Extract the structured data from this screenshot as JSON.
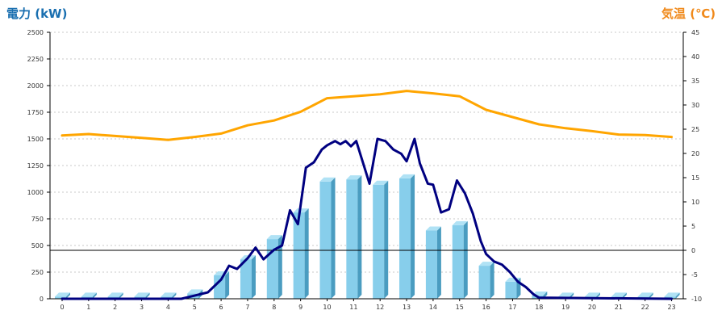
{
  "chart_data": {
    "type": "bar",
    "left_axis_title": "電力 (kW)",
    "right_axis_title": "気温 (℃)",
    "x": [
      0,
      1,
      2,
      3,
      4,
      5,
      6,
      7,
      8,
      9,
      10,
      11,
      12,
      13,
      14,
      15,
      16,
      17,
      18,
      19,
      20,
      21,
      22,
      23
    ],
    "x_tick_labels": [
      "0",
      "1",
      "2",
      "3",
      "4",
      "5",
      "6",
      "7",
      "8",
      "9",
      "10",
      "11",
      "12",
      "13",
      "14",
      "15",
      "16",
      "17",
      "18",
      "19",
      "20",
      "21",
      "22",
      "23"
    ],
    "ylim_left": [
      0,
      2500
    ],
    "y_left_ticks": [
      "0",
      "250",
      "500",
      "750",
      "1000",
      "1250",
      "1500",
      "1750",
      "2000",
      "2250",
      "2500"
    ],
    "ylim_right": [
      -10,
      45
    ],
    "y_right_ticks": [
      "-10",
      "-5",
      "0",
      "5",
      "10",
      "15",
      "20",
      "25",
      "30",
      "35",
      "40",
      "45"
    ],
    "grid": true,
    "series": [
      {
        "kind": "bar",
        "axis": "left",
        "color": "#87ceeb",
        "values": [
          20,
          20,
          20,
          20,
          20,
          50,
          220,
          370,
          560,
          810,
          1100,
          1120,
          1070,
          1130,
          640,
          690,
          310,
          160,
          30,
          20,
          20,
          20,
          20,
          20
        ]
      },
      {
        "kind": "line",
        "axis": "left",
        "color": "#000080",
        "points": [
          [
            0,
            0
          ],
          [
            4.5,
            0
          ],
          [
            5,
            30
          ],
          [
            5.5,
            60
          ],
          [
            6,
            180
          ],
          [
            6.3,
            310
          ],
          [
            6.6,
            280
          ],
          [
            7,
            380
          ],
          [
            7.3,
            480
          ],
          [
            7.6,
            370
          ],
          [
            8,
            460
          ],
          [
            8.3,
            500
          ],
          [
            8.6,
            830
          ],
          [
            8.9,
            700
          ],
          [
            9.2,
            1230
          ],
          [
            9.5,
            1280
          ],
          [
            9.8,
            1400
          ],
          [
            10,
            1440
          ],
          [
            10.3,
            1480
          ],
          [
            10.5,
            1450
          ],
          [
            10.7,
            1480
          ],
          [
            10.9,
            1430
          ],
          [
            11.1,
            1480
          ],
          [
            11.3,
            1320
          ],
          [
            11.6,
            1080
          ],
          [
            11.9,
            1500
          ],
          [
            12.2,
            1480
          ],
          [
            12.5,
            1400
          ],
          [
            12.8,
            1360
          ],
          [
            13,
            1290
          ],
          [
            13.3,
            1500
          ],
          [
            13.5,
            1270
          ],
          [
            13.8,
            1080
          ],
          [
            14,
            1070
          ],
          [
            14.3,
            810
          ],
          [
            14.6,
            840
          ],
          [
            14.9,
            1110
          ],
          [
            15.2,
            990
          ],
          [
            15.5,
            800
          ],
          [
            15.8,
            540
          ],
          [
            16,
            420
          ],
          [
            16.3,
            350
          ],
          [
            16.6,
            320
          ],
          [
            16.9,
            250
          ],
          [
            17.2,
            160
          ],
          [
            17.5,
            110
          ],
          [
            17.8,
            40
          ],
          [
            18,
            10
          ],
          [
            23,
            0
          ]
        ]
      },
      {
        "kind": "line",
        "axis": "right",
        "color": "#ffa500",
        "values": [
          23.7,
          24.0,
          23.6,
          23.2,
          22.8,
          23.4,
          24.1,
          25.8,
          26.8,
          28.6,
          31.4,
          31.8,
          32.2,
          32.9,
          32.4,
          31.8,
          29.0,
          27.5,
          26.0,
          25.2,
          24.6,
          23.9,
          23.8,
          23.4
        ]
      }
    ]
  },
  "colors": {
    "left_title": "#1a6fb0",
    "right_title": "#f08a1c",
    "bar_fill": "#87ceeb",
    "bar_side": "#4a9cc0",
    "bar_top": "#b0e2f5",
    "power_line": "#000080",
    "temp_line": "#ffa500",
    "grid": "#c8c8c8",
    "axis": "#000000"
  }
}
